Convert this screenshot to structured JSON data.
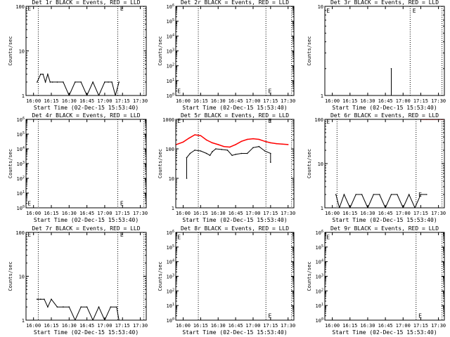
{
  "chart_data": [
    {
      "type": "line",
      "title": "Det 1r BLACK = Events, RED = LLD",
      "ylabel": "Counts/sec",
      "xlabel": "Start Time (02-Dec-15 15:53:40)",
      "yscale": "log",
      "ylim": [
        1,
        100
      ],
      "ytick_labels": [
        "1",
        "10",
        "100"
      ],
      "xlim": [
        "15:53:40",
        "17:35"
      ],
      "xtick_labels": [
        "16:00",
        "16:15",
        "16:30",
        "16:45",
        "17:00",
        "17:15",
        "17:30"
      ],
      "vlines": [
        "16:04",
        "17:11",
        "17:33"
      ],
      "markers": [
        {
          "label": "E",
          "x": "15:55",
          "y": 90
        },
        {
          "label": "E",
          "x": "17:13",
          "y": 90
        }
      ],
      "series": [
        {
          "color": "#000000",
          "x": [
            "16:03",
            "16:06",
            "16:08",
            "16:10",
            "16:12",
            "16:14",
            "16:16",
            "16:20",
            "16:25",
            "16:30",
            "16:35",
            "16:40",
            "16:45",
            "16:50",
            "16:55",
            "17:00",
            "17:03",
            "17:06",
            "17:09",
            "17:12"
          ],
          "y": [
            2,
            3,
            3,
            2,
            3,
            2,
            2,
            2,
            2,
            1,
            2,
            2,
            1,
            2,
            1,
            2,
            2,
            2,
            1,
            2
          ]
        }
      ]
    },
    {
      "type": "line",
      "title": "Det 2r BLACK = Events, RED = LLD",
      "ylabel": "Counts/sec",
      "xlabel": "Start Time (02-Dec-15 15:53:40)",
      "yscale": "log",
      "ylim": [
        1,
        1000000
      ],
      "ytick_labels": [
        "10^0",
        "10^1",
        "10^2",
        "10^3",
        "10^4",
        "10^5",
        "10^6"
      ],
      "xlim": [
        "15:53:40",
        "17:35"
      ],
      "xtick_labels": [
        "16:00",
        "16:15",
        "16:30",
        "16:45",
        "17:00",
        "17:15",
        "17:30"
      ],
      "vlines": [
        "16:13",
        "17:11",
        "17:33"
      ],
      "markers": [
        {
          "label": "E",
          "x": "15:55",
          "y": 2
        },
        {
          "label": "E",
          "x": "17:13",
          "y": 2
        }
      ],
      "series": []
    },
    {
      "type": "line",
      "title": "Det 3r BLACK = Events, RED = LLD",
      "ylabel": "Counts/sec",
      "xlabel": "Start Time (02-Dec-15 15:53:40)",
      "yscale": "log",
      "ylim": [
        1,
        10
      ],
      "ytick_labels": [
        "1",
        "10"
      ],
      "xlim": [
        "15:53:40",
        "17:35"
      ],
      "xtick_labels": [
        "16:00",
        "16:15",
        "16:30",
        "16:45",
        "17:00",
        "17:15",
        "17:30"
      ],
      "vlines": [
        "17:06",
        "17:33"
      ],
      "markers": [
        {
          "label": "E",
          "x": "15:55",
          "y": 9
        },
        {
          "label": "E",
          "x": "17:08",
          "y": 9
        }
      ],
      "series": [
        {
          "color": "#000000",
          "x": [
            "16:50",
            "16:50"
          ],
          "y": [
            1,
            2
          ]
        }
      ]
    },
    {
      "type": "line",
      "title": "Det 4r BLACK = Events, RED = LLD",
      "ylabel": "Counts/sec",
      "xlabel": "Start Time (02-Dec-15 15:53:40)",
      "yscale": "log",
      "ylim": [
        1,
        1000000
      ],
      "ytick_labels": [
        "10^0",
        "10^1",
        "10^2",
        "10^3",
        "10^4",
        "10^5",
        "10^6"
      ],
      "xlim": [
        "15:53:40",
        "17:35"
      ],
      "xtick_labels": [
        "16:00",
        "16:15",
        "16:30",
        "16:45",
        "17:00",
        "17:15",
        "17:30"
      ],
      "vlines": [
        "16:04",
        "17:11",
        "17:33"
      ],
      "markers": [
        {
          "label": "E",
          "x": "15:55",
          "y": 2
        },
        {
          "label": "E",
          "x": "17:13",
          "y": 2
        }
      ],
      "series": []
    },
    {
      "type": "line",
      "title": "Det 5r BLACK = Events, RED = LLD",
      "ylabel": "Counts/sec",
      "xlabel": "Start Time (02-Dec-15 15:53:40)",
      "yscale": "log",
      "ylim": [
        1,
        1000
      ],
      "ytick_labels": [
        "1",
        "10",
        "100",
        "1000"
      ],
      "xlim": [
        "15:53:40",
        "17:35"
      ],
      "xtick_labels": [
        "16:00",
        "16:15",
        "16:30",
        "16:45",
        "17:00",
        "17:15",
        "17:30"
      ],
      "vlines": [
        "16:13",
        "17:11",
        "17:33"
      ],
      "markers": [
        {
          "label": "E",
          "x": "15:55",
          "y": 900
        },
        {
          "label": "E",
          "x": "17:13",
          "y": 900
        }
      ],
      "series": [
        {
          "color": "#ff0000",
          "x": [
            "15:54",
            "16:00",
            "16:05",
            "16:10",
            "16:15",
            "16:20",
            "16:25",
            "16:30",
            "16:35",
            "16:40",
            "16:45",
            "16:50",
            "16:55",
            "17:00",
            "17:05",
            "17:10",
            "17:15",
            "17:20",
            "17:25",
            "17:30"
          ],
          "y": [
            140,
            170,
            230,
            300,
            280,
            200,
            160,
            140,
            120,
            115,
            140,
            180,
            210,
            220,
            210,
            180,
            160,
            150,
            145,
            140
          ]
        },
        {
          "color": "#000000",
          "x": [
            "16:03",
            "16:03",
            "16:06",
            "16:10",
            "16:15",
            "16:20",
            "16:23",
            "16:25",
            "16:28",
            "16:33",
            "16:38",
            "16:42",
            "16:45",
            "16:50",
            "16:55",
            "17:00",
            "17:05",
            "17:10",
            "17:15",
            "17:15"
          ],
          "y": [
            10,
            50,
            70,
            90,
            85,
            70,
            60,
            80,
            100,
            95,
            90,
            60,
            65,
            70,
            70,
            110,
            120,
            85,
            70,
            35
          ]
        }
      ]
    },
    {
      "type": "line",
      "title": "Det 6r BLACK = Events, RED = LLD",
      "ylabel": "Counts/sec",
      "xlabel": "Start Time (02-Dec-15 15:53:40)",
      "yscale": "log",
      "ylim": [
        1,
        100
      ],
      "ytick_labels": [
        "1",
        "10",
        "100"
      ],
      "xlim": [
        "15:53:40",
        "17:35"
      ],
      "xtick_labels": [
        "16:00",
        "16:15",
        "16:30",
        "16:45",
        "17:00",
        "17:15",
        "17:30"
      ],
      "vlines": [
        "16:04",
        "17:11",
        "17:33"
      ],
      "markers": [
        {
          "label": "E",
          "x": "15:55",
          "y": 90
        },
        {
          "label": "E",
          "x": "17:13",
          "y": 2
        }
      ],
      "series": [
        {
          "color": "#ff0000",
          "x": [
            "17:15",
            "17:20",
            "17:25",
            "17:30",
            "17:35"
          ],
          "y": [
            100,
            100,
            100,
            100,
            100
          ]
        },
        {
          "color": "#000000",
          "x": [
            "16:03",
            "16:06",
            "16:10",
            "16:15",
            "16:20",
            "16:25",
            "16:30",
            "16:35",
            "16:40",
            "16:45",
            "16:50",
            "16:55",
            "17:00",
            "17:05",
            "17:10",
            "17:15",
            "17:20"
          ],
          "y": [
            2,
            1,
            2,
            1,
            2,
            2,
            1,
            2,
            2,
            1,
            2,
            2,
            1,
            2,
            1,
            2,
            2
          ]
        }
      ]
    },
    {
      "type": "line",
      "title": "Det 7r BLACK = Events, RED = LLD",
      "ylabel": "Counts/sec",
      "xlabel": "Start Time (02-Dec-15 15:53:40)",
      "yscale": "log",
      "ylim": [
        1,
        100
      ],
      "ytick_labels": [
        "1",
        "10",
        "100"
      ],
      "xlim": [
        "15:53:40",
        "17:35"
      ],
      "xtick_labels": [
        "16:00",
        "16:15",
        "16:30",
        "16:45",
        "17:00",
        "17:15",
        "17:30"
      ],
      "vlines": [
        "16:04",
        "17:11",
        "17:33"
      ],
      "markers": [
        {
          "label": "E",
          "x": "15:55",
          "y": 90
        },
        {
          "label": "E",
          "x": "17:13",
          "y": 90
        }
      ],
      "series": [
        {
          "color": "#000000",
          "x": [
            "16:03",
            "16:06",
            "16:09",
            "16:12",
            "16:15",
            "16:20",
            "16:25",
            "16:30",
            "16:35",
            "16:40",
            "16:45",
            "16:50",
            "16:55",
            "17:00",
            "17:05",
            "17:10",
            "17:12"
          ],
          "y": [
            3,
            3,
            3,
            2,
            3,
            2,
            2,
            2,
            1,
            2,
            2,
            1,
            2,
            1,
            2,
            2,
            1
          ]
        }
      ]
    },
    {
      "type": "line",
      "title": "Det 8r BLACK = Events, RED = LLD",
      "ylabel": "Counts/sec",
      "xlabel": "Start Time (02-Dec-15 15:53:40)",
      "yscale": "log",
      "ylim": [
        1,
        1000000
      ],
      "ytick_labels": [
        "10^0",
        "10^1",
        "10^2",
        "10^3",
        "10^4",
        "10^5",
        "10^6"
      ],
      "xlim": [
        "15:53:40",
        "17:35"
      ],
      "xtick_labels": [
        "16:00",
        "16:15",
        "16:30",
        "16:45",
        "17:00",
        "17:15",
        "17:30"
      ],
      "vlines": [
        "16:13",
        "17:11",
        "17:33"
      ],
      "markers": [
        {
          "label": "E",
          "x": "15:55",
          "y": 500000
        },
        {
          "label": "E",
          "x": "17:13",
          "y": 2
        }
      ],
      "series": []
    },
    {
      "type": "line",
      "title": "Det 9r BLACK = Events, RED = LLD",
      "ylabel": "Counts/sec",
      "xlabel": "Start Time (02-Dec-15 15:53:40)",
      "yscale": "log",
      "ylim": [
        1,
        1000000
      ],
      "ytick_labels": [
        "10^0",
        "10^1",
        "10^2",
        "10^3",
        "10^4",
        "10^5",
        "10^6"
      ],
      "xlim": [
        "15:53:40",
        "17:35"
      ],
      "xtick_labels": [
        "16:00",
        "16:15",
        "16:30",
        "16:45",
        "17:00",
        "17:15",
        "17:30"
      ],
      "vlines": [
        "17:11",
        "17:33"
      ],
      "markers": [
        {
          "label": "E",
          "x": "15:55",
          "y": 500000
        },
        {
          "label": "E",
          "x": "17:13",
          "y": 2
        }
      ],
      "series": []
    }
  ]
}
